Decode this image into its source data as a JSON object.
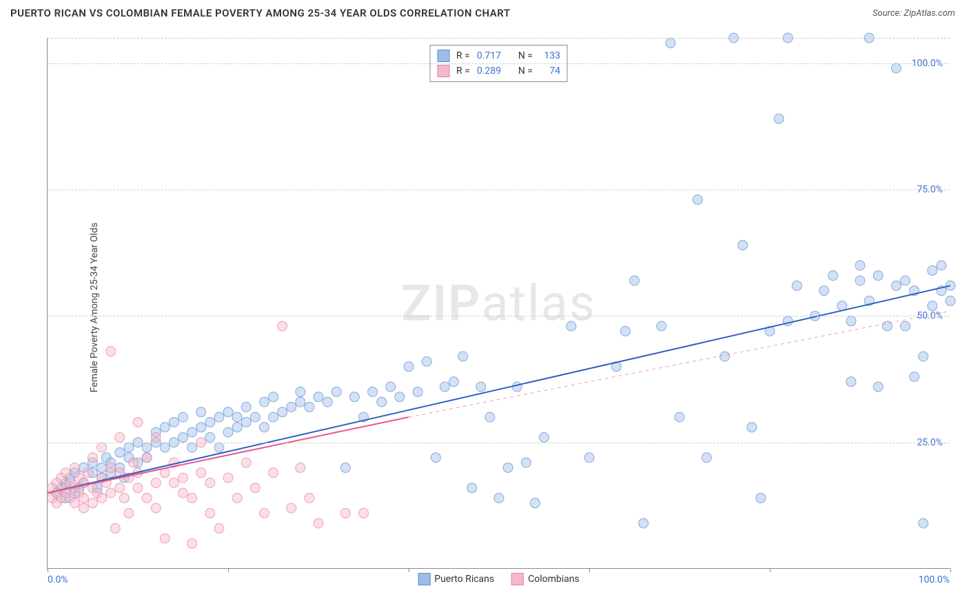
{
  "header": {
    "title": "PUERTO RICAN VS COLOMBIAN FEMALE POVERTY AMONG 25-34 YEAR OLDS CORRELATION CHART",
    "source": "Source: ZipAtlas.com"
  },
  "y_axis_label": "Female Poverty Among 25-34 Year Olds",
  "watermark": {
    "bold": "ZIP",
    "rest": "atlas"
  },
  "chart": {
    "type": "scatter",
    "xlim": [
      0,
      100
    ],
    "ylim": [
      0,
      105
    ],
    "x_ticks": [
      0,
      20,
      40,
      60,
      80,
      100
    ],
    "y_gridlines": [
      25,
      50,
      75,
      100,
      105
    ],
    "y_tick_labels": [
      {
        "v": 25,
        "label": "25.0%"
      },
      {
        "v": 50,
        "label": "50.0%"
      },
      {
        "v": 75,
        "label": "75.0%"
      },
      {
        "v": 100,
        "label": "100.0%"
      }
    ],
    "x_min_label": "0.0%",
    "x_max_label": "100.0%",
    "background_color": "#ffffff",
    "grid_color": "#cccccc",
    "axis_color": "#888888",
    "tick_label_color": "#3b6fd6",
    "marker_radius": 7,
    "marker_opacity": 0.45,
    "line_width": 2,
    "series": [
      {
        "name": "Puerto Ricans",
        "color_fill": "#9dbde8",
        "color_stroke": "#5c8ad0",
        "line_color": "#2f5fbf",
        "stats": {
          "R": "0.717",
          "N": "133"
        },
        "regression": {
          "x1": 0,
          "y1": 15,
          "x2": 100,
          "y2": 56,
          "dashed": false
        },
        "points": [
          [
            1,
            15
          ],
          [
            1.5,
            16
          ],
          [
            2,
            14
          ],
          [
            2,
            17
          ],
          [
            2.5,
            18
          ],
          [
            3,
            15
          ],
          [
            3,
            19
          ],
          [
            3.5,
            16
          ],
          [
            4,
            20
          ],
          [
            4,
            17
          ],
          [
            5,
            19
          ],
          [
            5,
            21
          ],
          [
            5.5,
            16
          ],
          [
            6,
            18
          ],
          [
            6,
            20
          ],
          [
            6.5,
            22
          ],
          [
            7,
            19
          ],
          [
            7,
            21
          ],
          [
            8,
            23
          ],
          [
            8,
            20
          ],
          [
            8.5,
            18
          ],
          [
            9,
            22
          ],
          [
            9,
            24
          ],
          [
            10,
            21
          ],
          [
            10,
            25
          ],
          [
            11,
            24
          ],
          [
            11,
            22
          ],
          [
            12,
            25
          ],
          [
            12,
            27
          ],
          [
            13,
            24
          ],
          [
            13,
            28
          ],
          [
            14,
            25
          ],
          [
            14,
            29
          ],
          [
            15,
            26
          ],
          [
            15,
            30
          ],
          [
            16,
            27
          ],
          [
            16,
            24
          ],
          [
            17,
            28
          ],
          [
            17,
            31
          ],
          [
            18,
            29
          ],
          [
            18,
            26
          ],
          [
            19,
            24
          ],
          [
            19,
            30
          ],
          [
            20,
            27
          ],
          [
            20,
            31
          ],
          [
            21,
            28
          ],
          [
            21,
            30
          ],
          [
            22,
            32
          ],
          [
            22,
            29
          ],
          [
            23,
            30
          ],
          [
            24,
            28
          ],
          [
            24,
            33
          ],
          [
            25,
            30
          ],
          [
            25,
            34
          ],
          [
            26,
            31
          ],
          [
            27,
            32
          ],
          [
            28,
            33
          ],
          [
            28,
            35
          ],
          [
            29,
            32
          ],
          [
            30,
            34
          ],
          [
            31,
            33
          ],
          [
            32,
            35
          ],
          [
            33,
            20
          ],
          [
            34,
            34
          ],
          [
            35,
            30
          ],
          [
            36,
            35
          ],
          [
            37,
            33
          ],
          [
            38,
            36
          ],
          [
            39,
            34
          ],
          [
            40,
            40
          ],
          [
            41,
            35
          ],
          [
            42,
            41
          ],
          [
            43,
            22
          ],
          [
            44,
            36
          ],
          [
            45,
            37
          ],
          [
            46,
            42
          ],
          [
            47,
            16
          ],
          [
            48,
            36
          ],
          [
            49,
            30
          ],
          [
            50,
            14
          ],
          [
            51,
            20
          ],
          [
            52,
            36
          ],
          [
            53,
            21
          ],
          [
            54,
            13
          ],
          [
            55,
            26
          ],
          [
            58,
            48
          ],
          [
            60,
            22
          ],
          [
            63,
            40
          ],
          [
            64,
            47
          ],
          [
            65,
            57
          ],
          [
            66,
            9
          ],
          [
            68,
            48
          ],
          [
            69,
            104
          ],
          [
            70,
            30
          ],
          [
            72,
            73
          ],
          [
            73,
            22
          ],
          [
            75,
            42
          ],
          [
            76,
            105
          ],
          [
            77,
            64
          ],
          [
            78,
            28
          ],
          [
            79,
            14
          ],
          [
            80,
            47
          ],
          [
            81,
            89
          ],
          [
            82,
            49
          ],
          [
            82,
            105
          ],
          [
            83,
            56
          ],
          [
            85,
            50
          ],
          [
            86,
            55
          ],
          [
            87,
            58
          ],
          [
            88,
            52
          ],
          [
            89,
            49
          ],
          [
            89,
            37
          ],
          [
            90,
            60
          ],
          [
            90,
            57
          ],
          [
            91,
            105
          ],
          [
            91,
            53
          ],
          [
            92,
            36
          ],
          [
            92,
            58
          ],
          [
            93,
            48
          ],
          [
            94,
            99
          ],
          [
            94,
            56
          ],
          [
            95,
            57
          ],
          [
            95,
            48
          ],
          [
            96,
            38
          ],
          [
            96,
            55
          ],
          [
            97,
            42
          ],
          [
            97,
            9
          ],
          [
            98,
            52
          ],
          [
            98,
            59
          ],
          [
            99,
            55
          ],
          [
            99,
            60
          ],
          [
            100,
            56
          ],
          [
            100,
            53
          ]
        ]
      },
      {
        "name": "Colombians",
        "color_fill": "#f4b9c8",
        "color_stroke": "#e77fa0",
        "line_color": "#e85590",
        "stats": {
          "R": "0.289",
          "N": "74"
        },
        "regression_solid": {
          "x1": 0,
          "y1": 15,
          "x2": 40,
          "y2": 30
        },
        "regression_dashed": {
          "x1": 40,
          "y1": 30,
          "x2": 100,
          "y2": 51
        },
        "points": [
          [
            0.5,
            14
          ],
          [
            0.5,
            16
          ],
          [
            1,
            15
          ],
          [
            1,
            17
          ],
          [
            1,
            13
          ],
          [
            1.5,
            18
          ],
          [
            1.5,
            14
          ],
          [
            2,
            15
          ],
          [
            2,
            16
          ],
          [
            2,
            19
          ],
          [
            2.5,
            14
          ],
          [
            2.5,
            17
          ],
          [
            3,
            16
          ],
          [
            3,
            13
          ],
          [
            3,
            20
          ],
          [
            3.5,
            15
          ],
          [
            3.5,
            18
          ],
          [
            4,
            14
          ],
          [
            4,
            17
          ],
          [
            4,
            12
          ],
          [
            4.5,
            19
          ],
          [
            5,
            16
          ],
          [
            5,
            13
          ],
          [
            5,
            22
          ],
          [
            5.5,
            15
          ],
          [
            6,
            18
          ],
          [
            6,
            14
          ],
          [
            6,
            24
          ],
          [
            6.5,
            17
          ],
          [
            7,
            43
          ],
          [
            7,
            15
          ],
          [
            7,
            20
          ],
          [
            7.5,
            8
          ],
          [
            8,
            16
          ],
          [
            8,
            19
          ],
          [
            8,
            26
          ],
          [
            8.5,
            14
          ],
          [
            9,
            18
          ],
          [
            9,
            11
          ],
          [
            9.5,
            21
          ],
          [
            10,
            29
          ],
          [
            10,
            16
          ],
          [
            10,
            19
          ],
          [
            11,
            14
          ],
          [
            11,
            22
          ],
          [
            12,
            17
          ],
          [
            12,
            12
          ],
          [
            12,
            26
          ],
          [
            13,
            6
          ],
          [
            13,
            19
          ],
          [
            14,
            17
          ],
          [
            14,
            21
          ],
          [
            15,
            15
          ],
          [
            15,
            18
          ],
          [
            16,
            14
          ],
          [
            16,
            5
          ],
          [
            17,
            25
          ],
          [
            17,
            19
          ],
          [
            18,
            11
          ],
          [
            18,
            17
          ],
          [
            19,
            8
          ],
          [
            20,
            18
          ],
          [
            21,
            14
          ],
          [
            22,
            21
          ],
          [
            23,
            16
          ],
          [
            24,
            11
          ],
          [
            25,
            19
          ],
          [
            26,
            48
          ],
          [
            27,
            12
          ],
          [
            28,
            20
          ],
          [
            29,
            14
          ],
          [
            30,
            9
          ],
          [
            33,
            11
          ],
          [
            35,
            11
          ]
        ]
      }
    ]
  },
  "stats_legend_labels": {
    "R": "R =",
    "N": "N ="
  },
  "bottom_legend": [
    {
      "label": "Puerto Ricans",
      "fill": "#9dbde8",
      "stroke": "#5c8ad0"
    },
    {
      "label": "Colombians",
      "fill": "#f4b9c8",
      "stroke": "#e77fa0"
    }
  ]
}
